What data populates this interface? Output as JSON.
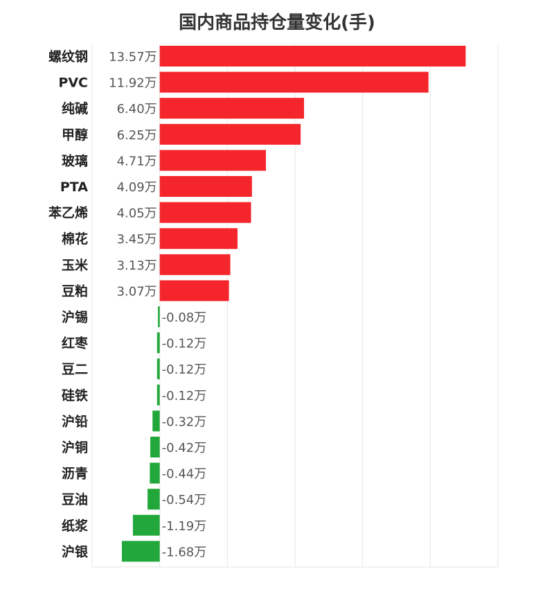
{
  "chart_data": {
    "type": "bar",
    "orientation": "horizontal",
    "title": "国内商品持仓量变化(手)",
    "unit": "万",
    "categories": [
      "螺纹钢",
      "PVC",
      "纯碱",
      "甲醇",
      "玻璃",
      "PTA",
      "苯乙烯",
      "棉花",
      "玉米",
      "豆粕",
      "沪锡",
      "红枣",
      "豆二",
      "硅铁",
      "沪铅",
      "沪铜",
      "沥青",
      "豆油",
      "纸浆",
      "沪银"
    ],
    "values": [
      13.57,
      11.92,
      6.4,
      6.25,
      4.71,
      4.09,
      4.05,
      3.45,
      3.13,
      3.07,
      -0.08,
      -0.12,
      -0.12,
      -0.12,
      -0.32,
      -0.42,
      -0.44,
      -0.54,
      -1.19,
      -1.68
    ],
    "value_labels": [
      "13.57万",
      "11.92万",
      "6.40万",
      "6.25万",
      "4.71万",
      "4.09万",
      "4.05万",
      "3.45万",
      "3.13万",
      "3.07万",
      "-0.08万",
      "-0.12万",
      "-0.12万",
      "-0.12万",
      "-0.32万",
      "-0.42万",
      "-0.44万",
      "-0.54万",
      "-1.19万",
      "-1.68万"
    ],
    "xlim": [
      -3,
      15
    ],
    "grid": true,
    "colors": {
      "positive": "#f5262b",
      "negative": "#22a83a",
      "grid": "#e6e6e6"
    }
  }
}
